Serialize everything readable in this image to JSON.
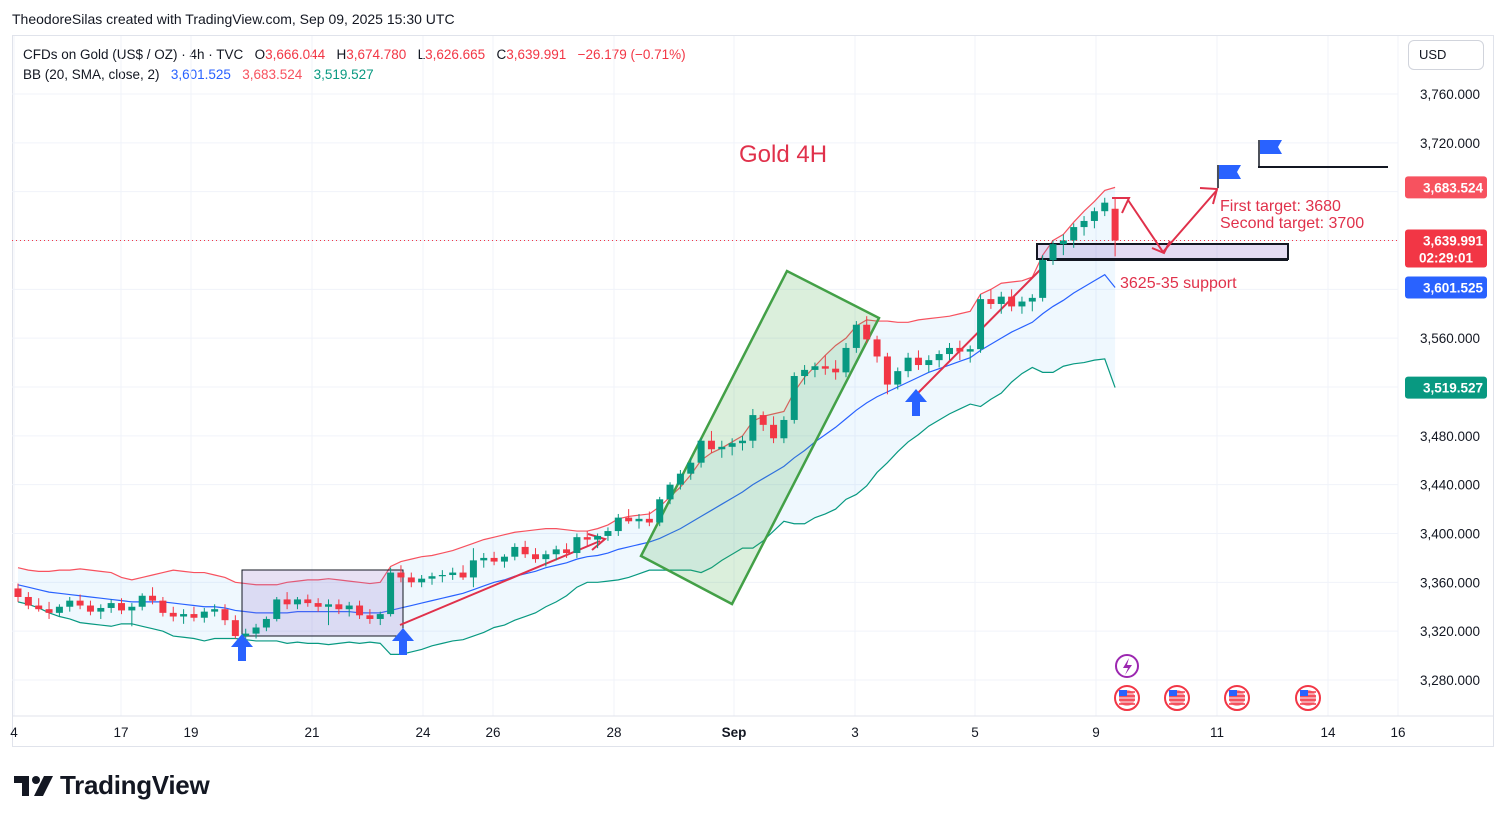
{
  "header": {
    "text": "TheodoreSilas created with TradingView.com, Sep 09, 2025 15:30 UTC"
  },
  "legend": {
    "symbol": "CFDs on Gold (US$ / OZ) · 4h · TVC",
    "o_label": "O",
    "o_value": "3,666.044",
    "h_label": "H",
    "h_value": "3,674.780",
    "l_label": "L",
    "l_value": "3,626.665",
    "c_label": "C",
    "c_value": "3,639.991",
    "change": "−26.179 (−0.71%)",
    "bb_label": "BB (20, SMA, close, 2)",
    "bb_mid": "3,601.525",
    "bb_upper": "3,683.524",
    "bb_lower": "3,519.527"
  },
  "currency": "USD",
  "brand": "TradingView",
  "colors": {
    "up": "#089981",
    "down": "#f23645",
    "bb_mid": "#2962ff",
    "bb_upper": "#f7525f",
    "bb_lower": "#089981",
    "annotation": "#e0314b"
  },
  "chart_data": {
    "type": "candlestick",
    "title": "Gold 4H",
    "y_axis": {
      "ticks": [
        "3,760.000",
        "3,720.000",
        "3,680.000",
        "3,640.000",
        "3,600.000",
        "3,560.000",
        "3,520.000",
        "3,480.000",
        "3,440.000",
        "3,400.000",
        "3,360.000",
        "3,320.000",
        "3,280.000"
      ],
      "ylim": [
        3262,
        3782
      ]
    },
    "x_axis": {
      "ticks": [
        "4",
        "17",
        "19",
        "21",
        "24",
        "26",
        "28",
        "Sep",
        "3",
        "5",
        "9",
        "11",
        "14",
        "16"
      ],
      "bold_tick": "Sep"
    },
    "price_tags": [
      {
        "label": "3,683.524",
        "value": 3683.524,
        "color": "#f7525f"
      },
      {
        "label": "3,639.991",
        "sub": "02:29:01",
        "value": 3639.991,
        "color": "#f23645"
      },
      {
        "label": "3,601.525",
        "value": 3601.525,
        "color": "#2962ff"
      },
      {
        "label": "3,519.527",
        "value": 3519.527,
        "color": "#089981"
      }
    ],
    "annotations": {
      "target1": "First target: 3680",
      "target2": "Second target: 3700",
      "support": "3625-35 support"
    },
    "candles": [
      [
        3355,
        3359,
        3344,
        3348
      ],
      [
        3348,
        3352,
        3338,
        3341
      ],
      [
        3341,
        3347,
        3336,
        3338
      ],
      [
        3338,
        3344,
        3330,
        3335
      ],
      [
        3335,
        3342,
        3332,
        3340
      ],
      [
        3340,
        3348,
        3336,
        3345
      ],
      [
        3345,
        3350,
        3338,
        3341
      ],
      [
        3341,
        3345,
        3333,
        3336
      ],
      [
        3336,
        3342,
        3330,
        3339
      ],
      [
        3339,
        3346,
        3335,
        3343
      ],
      [
        3343,
        3347,
        3334,
        3337
      ],
      [
        3337,
        3343,
        3324,
        3340
      ],
      [
        3340,
        3351,
        3337,
        3349
      ],
      [
        3349,
        3356,
        3342,
        3345
      ],
      [
        3345,
        3348,
        3332,
        3335
      ],
      [
        3335,
        3340,
        3328,
        3332
      ],
      [
        3332,
        3338,
        3326,
        3334
      ],
      [
        3334,
        3340,
        3328,
        3331
      ],
      [
        3331,
        3339,
        3327,
        3336
      ],
      [
        3336,
        3342,
        3332,
        3338
      ],
      [
        3338,
        3342,
        3325,
        3329
      ],
      [
        3329,
        3333,
        3314,
        3316
      ],
      [
        3316,
        3322,
        3312,
        3318
      ],
      [
        3318,
        3326,
        3314,
        3323
      ],
      [
        3323,
        3332,
        3320,
        3330
      ],
      [
        3330,
        3348,
        3328,
        3346
      ],
      [
        3346,
        3352,
        3338,
        3342
      ],
      [
        3342,
        3348,
        3338,
        3346
      ],
      [
        3346,
        3350,
        3340,
        3343
      ],
      [
        3343,
        3347,
        3336,
        3340
      ],
      [
        3340,
        3346,
        3325,
        3342
      ],
      [
        3342,
        3346,
        3334,
        3338
      ],
      [
        3338,
        3344,
        3332,
        3341
      ],
      [
        3341,
        3345,
        3330,
        3333
      ],
      [
        3333,
        3338,
        3326,
        3330
      ],
      [
        3330,
        3336,
        3325,
        3334
      ],
      [
        3334,
        3372,
        3332,
        3368
      ],
      [
        3368,
        3374,
        3360,
        3364
      ],
      [
        3364,
        3368,
        3356,
        3360
      ],
      [
        3360,
        3366,
        3356,
        3363
      ],
      [
        3363,
        3368,
        3358,
        3365
      ],
      [
        3365,
        3370,
        3360,
        3366
      ],
      [
        3366,
        3372,
        3362,
        3368
      ],
      [
        3368,
        3374,
        3362,
        3364
      ],
      [
        3364,
        3388,
        3356,
        3378
      ],
      [
        3378,
        3384,
        3372,
        3380
      ],
      [
        3380,
        3385,
        3374,
        3377
      ],
      [
        3377,
        3383,
        3372,
        3381
      ],
      [
        3381,
        3392,
        3378,
        3389
      ],
      [
        3389,
        3394,
        3380,
        3383
      ],
      [
        3383,
        3388,
        3376,
        3379
      ],
      [
        3379,
        3386,
        3373,
        3383
      ],
      [
        3383,
        3390,
        3378,
        3387
      ],
      [
        3387,
        3392,
        3380,
        3384
      ],
      [
        3384,
        3400,
        3380,
        3397
      ],
      [
        3397,
        3402,
        3390,
        3395
      ],
      [
        3395,
        3400,
        3388,
        3398
      ],
      [
        3398,
        3405,
        3394,
        3402
      ],
      [
        3402,
        3416,
        3398,
        3413
      ],
      [
        3413,
        3420,
        3408,
        3410
      ],
      [
        3410,
        3416,
        3404,
        3412
      ],
      [
        3412,
        3418,
        3406,
        3409
      ],
      [
        3409,
        3430,
        3406,
        3428
      ],
      [
        3428,
        3442,
        3424,
        3440
      ],
      [
        3440,
        3452,
        3436,
        3449
      ],
      [
        3449,
        3462,
        3444,
        3458
      ],
      [
        3458,
        3478,
        3454,
        3476
      ],
      [
        3476,
        3484,
        3466,
        3469
      ],
      [
        3469,
        3476,
        3462,
        3471
      ],
      [
        3471,
        3478,
        3464,
        3474
      ],
      [
        3474,
        3480,
        3468,
        3476
      ],
      [
        3476,
        3502,
        3470,
        3497
      ],
      [
        3497,
        3500,
        3484,
        3489
      ],
      [
        3489,
        3496,
        3474,
        3478
      ],
      [
        3478,
        3496,
        3474,
        3493
      ],
      [
        3493,
        3532,
        3490,
        3529
      ],
      [
        3529,
        3538,
        3522,
        3534
      ],
      [
        3534,
        3540,
        3528,
        3537
      ],
      [
        3537,
        3546,
        3530,
        3535
      ],
      [
        3535,
        3542,
        3526,
        3532
      ],
      [
        3532,
        3556,
        3528,
        3552
      ],
      [
        3552,
        3574,
        3548,
        3571
      ],
      [
        3571,
        3578,
        3556,
        3559
      ],
      [
        3559,
        3562,
        3540,
        3545
      ],
      [
        3545,
        3548,
        3514,
        3522
      ],
      [
        3522,
        3536,
        3518,
        3533
      ],
      [
        3533,
        3548,
        3528,
        3544
      ],
      [
        3544,
        3550,
        3534,
        3538
      ],
      [
        3538,
        3546,
        3532,
        3542
      ],
      [
        3542,
        3550,
        3536,
        3547
      ],
      [
        3547,
        3556,
        3542,
        3552
      ],
      [
        3552,
        3558,
        3542,
        3549
      ],
      [
        3549,
        3554,
        3540,
        3551
      ],
      [
        3551,
        3596,
        3548,
        3592
      ],
      [
        3592,
        3600,
        3584,
        3588
      ],
      [
        3588,
        3598,
        3580,
        3594
      ],
      [
        3594,
        3600,
        3582,
        3586
      ],
      [
        3586,
        3594,
        3580,
        3590
      ],
      [
        3590,
        3596,
        3582,
        3593
      ],
      [
        3593,
        3628,
        3590,
        3624
      ],
      [
        3624,
        3640,
        3620,
        3637
      ],
      [
        3637,
        3645,
        3628,
        3640
      ],
      [
        3640,
        3654,
        3634,
        3651
      ],
      [
        3651,
        3660,
        3644,
        3656
      ],
      [
        3656,
        3667,
        3650,
        3664
      ],
      [
        3664,
        3675,
        3660,
        3671
      ],
      [
        3666,
        3675,
        3627,
        3640
      ]
    ],
    "bollinger": {
      "upper": [
        3372,
        3370,
        3369,
        3369,
        3370,
        3370,
        3371,
        3370,
        3369,
        3368,
        3364,
        3362,
        3364,
        3366,
        3368,
        3370,
        3369,
        3368,
        3368,
        3366,
        3364,
        3360,
        3359,
        3358,
        3358,
        3358,
        3360,
        3361,
        3362,
        3362,
        3363,
        3362,
        3361,
        3360,
        3359,
        3360,
        3373,
        3377,
        3379,
        3381,
        3382,
        3384,
        3386,
        3389,
        3392,
        3395,
        3397,
        3399,
        3401,
        3402,
        3403,
        3404,
        3404,
        3403,
        3402,
        3402,
        3404,
        3407,
        3412,
        3414,
        3415,
        3416,
        3422,
        3430,
        3438,
        3448,
        3460,
        3466,
        3470,
        3475,
        3480,
        3492,
        3496,
        3498,
        3500,
        3516,
        3528,
        3537,
        3546,
        3554,
        3560,
        3570,
        3575,
        3574,
        3574,
        3573,
        3573,
        3575,
        3576,
        3577,
        3578,
        3580,
        3582,
        3596,
        3600,
        3605,
        3606,
        3607,
        3610,
        3628,
        3640,
        3645,
        3655,
        3664,
        3672,
        3681,
        3683.524
      ],
      "basis": [
        3358,
        3356,
        3354,
        3352,
        3351,
        3350,
        3349,
        3348,
        3347,
        3346,
        3345,
        3344,
        3344,
        3344,
        3344,
        3343,
        3342,
        3341,
        3340,
        3340,
        3339,
        3337,
        3336,
        3335,
        3335,
        3335,
        3335,
        3336,
        3336,
        3336,
        3336,
        3336,
        3336,
        3335,
        3335,
        3335,
        3337,
        3339,
        3341,
        3343,
        3345,
        3347,
        3349,
        3351,
        3354,
        3357,
        3360,
        3362,
        3365,
        3367,
        3369,
        3372,
        3374,
        3376,
        3379,
        3381,
        3382,
        3384,
        3387,
        3389,
        3391,
        3393,
        3396,
        3400,
        3404,
        3409,
        3414,
        3419,
        3424,
        3429,
        3434,
        3440,
        3445,
        3450,
        3455,
        3462,
        3468,
        3475,
        3481,
        3487,
        3494,
        3501,
        3507,
        3512,
        3516,
        3520,
        3524,
        3528,
        3532,
        3535,
        3538,
        3541,
        3544,
        3550,
        3555,
        3560,
        3565,
        3569,
        3573,
        3580,
        3586,
        3591,
        3597,
        3602,
        3607,
        3612,
        3601.525
      ],
      "lower": [
        3344,
        3342,
        3339,
        3335,
        3332,
        3330,
        3327,
        3326,
        3325,
        3324,
        3326,
        3326,
        3324,
        3322,
        3320,
        3316,
        3315,
        3314,
        3312,
        3314,
        3314,
        3314,
        3313,
        3312,
        3312,
        3312,
        3310,
        3311,
        3310,
        3310,
        3309,
        3310,
        3311,
        3310,
        3311,
        3310,
        3301,
        3301,
        3303,
        3305,
        3308,
        3310,
        3312,
        3313,
        3316,
        3319,
        3323,
        3325,
        3329,
        3332,
        3335,
        3340,
        3344,
        3349,
        3356,
        3360,
        3360,
        3361,
        3362,
        3364,
        3367,
        3370,
        3370,
        3370,
        3370,
        3370,
        3368,
        3372,
        3378,
        3383,
        3388,
        3388,
        3394,
        3402,
        3410,
        3408,
        3408,
        3413,
        3416,
        3420,
        3428,
        3432,
        3439,
        3450,
        3458,
        3467,
        3475,
        3481,
        3488,
        3493,
        3498,
        3502,
        3506,
        3504,
        3510,
        3515,
        3524,
        3531,
        3536,
        3532,
        3532,
        3537,
        3539,
        3540,
        3542,
        3543,
        3519.527
      ]
    }
  }
}
